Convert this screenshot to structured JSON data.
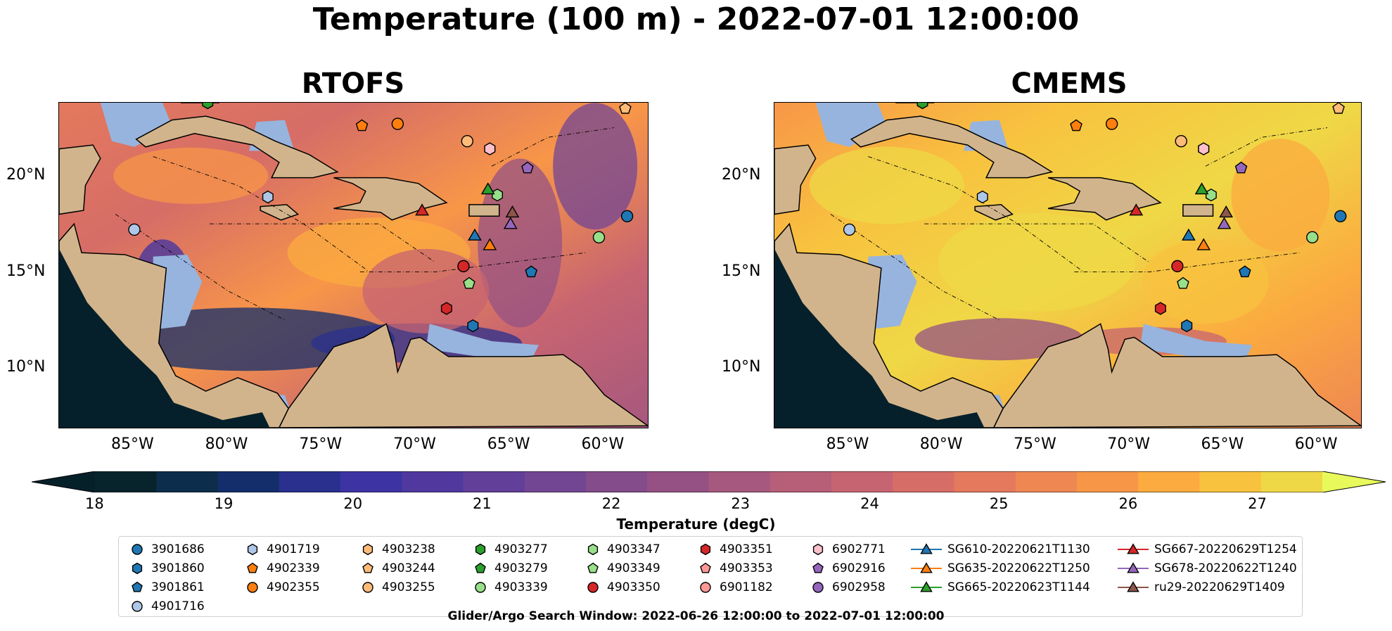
{
  "figure": {
    "title": "Temperature (100 m) - 2022-07-01 12:00:00",
    "search_window": "Glider/Argo Search Window: 2022-06-26 12:00:00 to 2022-07-01 12:00:00"
  },
  "panels": [
    {
      "title": "RTOFS",
      "palette": "cool"
    },
    {
      "title": "CMEMS",
      "palette": "warm"
    }
  ],
  "axes": {
    "lon_ticks": [
      "85°W",
      "80°W",
      "75°W",
      "70°W",
      "65°W",
      "60°W"
    ],
    "lat_ticks": [
      "20°N",
      "15°N",
      "10°N"
    ]
  },
  "colorbar": {
    "label": "Temperature (degC)",
    "min": 18,
    "max": 27.5,
    "ticks": [
      "18",
      "19",
      "20",
      "21",
      "22",
      "23",
      "24",
      "25",
      "26",
      "27"
    ],
    "colors": [
      "#07232c",
      "#0c2d4b",
      "#132e6b",
      "#2a308e",
      "#3d33a3",
      "#50389f",
      "#623f99",
      "#734693",
      "#844c8b",
      "#955184",
      "#a6587e",
      "#b75e78",
      "#c76471",
      "#d66d67",
      "#e4795d",
      "#ef8753",
      "#f89648",
      "#fbab3f",
      "#f8c23f",
      "#efd846"
    ],
    "under_color": "#06202a",
    "over_color": "#e8fa5b"
  },
  "map_colors": {
    "land": "#d2b48c",
    "shelf": "#97b4de",
    "deep_land": "#05202a"
  },
  "legend": {
    "columns": [
      [
        {
          "label": "3901686",
          "marker": "circle",
          "color": "#1f77b4"
        },
        {
          "label": "3901860",
          "marker": "hexagon",
          "color": "#1f77b4"
        },
        {
          "label": "3901861",
          "marker": "pentagon",
          "color": "#1f77b4"
        },
        {
          "label": "4901716",
          "marker": "circle",
          "color": "#aec7e8"
        }
      ],
      [
        {
          "label": "4901719",
          "marker": "hexagon",
          "color": "#aec7e8"
        },
        {
          "label": "4902339",
          "marker": "pentagon",
          "color": "#ff7f0e"
        },
        {
          "label": "4902355",
          "marker": "circle",
          "color": "#ff7f0e"
        }
      ],
      [
        {
          "label": "4903238",
          "marker": "hexagon",
          "color": "#ffbb78"
        },
        {
          "label": "4903244",
          "marker": "pentagon",
          "color": "#ffbb78"
        },
        {
          "label": "4903255",
          "marker": "circle",
          "color": "#ffbb78"
        }
      ],
      [
        {
          "label": "4903277",
          "marker": "hexagon",
          "color": "#2ca02c"
        },
        {
          "label": "4903279",
          "marker": "pentagon",
          "color": "#2ca02c"
        },
        {
          "label": "4903339",
          "marker": "circle",
          "color": "#98df8a"
        }
      ],
      [
        {
          "label": "4903347",
          "marker": "hexagon",
          "color": "#98df8a"
        },
        {
          "label": "4903349",
          "marker": "pentagon",
          "color": "#98df8a"
        },
        {
          "label": "4903350",
          "marker": "circle",
          "color": "#d62728"
        }
      ],
      [
        {
          "label": "4903351",
          "marker": "hexagon",
          "color": "#d62728"
        },
        {
          "label": "4903353",
          "marker": "pentagon",
          "color": "#ff9896"
        },
        {
          "label": "6901182",
          "marker": "circle",
          "color": "#ff9896"
        }
      ],
      [
        {
          "label": "6902771",
          "marker": "hexagon",
          "color": "#ffc0cb"
        },
        {
          "label": "6902916",
          "marker": "pentagon",
          "color": "#9467bd"
        },
        {
          "label": "6902958",
          "marker": "circle",
          "color": "#9467bd"
        }
      ],
      [
        {
          "label": "SG610-20220621T1130",
          "marker": "triangle-line",
          "color": "#1f77b4"
        },
        {
          "label": "SG635-20220622T1250",
          "marker": "triangle-line",
          "color": "#ff7f0e"
        },
        {
          "label": "SG665-20220623T1144",
          "marker": "triangle-line",
          "color": "#2ca02c"
        }
      ],
      [
        {
          "label": "SG667-20220629T1254",
          "marker": "triangle-line",
          "color": "#d62728"
        },
        {
          "label": "SG678-20220622T1240",
          "marker": "triangle-line",
          "color": "#9467bd"
        },
        {
          "label": "ru29-20220629T1409",
          "marker": "triangle-line",
          "color": "#8c564b"
        }
      ]
    ]
  },
  "observations": [
    {
      "id": "3901686",
      "marker": "circle",
      "color": "#1f77b4",
      "lon": -58.8,
      "lat": 17.9
    },
    {
      "id": "3901860",
      "marker": "hexagon",
      "color": "#1f77b4",
      "lon": -67.0,
      "lat": 12.2
    },
    {
      "id": "3901861",
      "marker": "pentagon",
      "color": "#1f77b4",
      "lon": -63.9,
      "lat": 15.0
    },
    {
      "id": "4901716",
      "marker": "circle",
      "color": "#aec7e8",
      "lon": -85.0,
      "lat": 17.2
    },
    {
      "id": "4901719",
      "marker": "hexagon",
      "color": "#aec7e8",
      "lon": -77.9,
      "lat": 18.9
    },
    {
      "id": "4902339",
      "marker": "pentagon",
      "color": "#ff7f0e",
      "lon": -72.9,
      "lat": 22.6
    },
    {
      "id": "4902355",
      "marker": "circle",
      "color": "#ff7f0e",
      "lon": -71.0,
      "lat": 22.7
    },
    {
      "id": "4903238",
      "marker": "hexagon",
      "color": "#ffbb78",
      "lon": -66.1,
      "lat": 21.4
    },
    {
      "id": "4903244",
      "marker": "pentagon",
      "color": "#ffbb78",
      "lon": -58.9,
      "lat": 23.5
    },
    {
      "id": "4903255",
      "marker": "circle",
      "color": "#ffbb78",
      "lon": -67.3,
      "lat": 21.8
    },
    {
      "id": "4903277",
      "marker": "hexagon",
      "color": "#2ca02c",
      "lon": -81.1,
      "lat": 23.8
    },
    {
      "id": "4903339",
      "marker": "circle",
      "color": "#98df8a",
      "lon": -60.3,
      "lat": 16.8
    },
    {
      "id": "4903347",
      "marker": "hexagon",
      "color": "#98df8a",
      "lon": -65.7,
      "lat": 19.0
    },
    {
      "id": "4903349",
      "marker": "pentagon",
      "color": "#98df8a",
      "lon": -67.2,
      "lat": 14.4
    },
    {
      "id": "4903350",
      "marker": "circle",
      "color": "#d62728",
      "lon": -67.5,
      "lat": 15.3
    },
    {
      "id": "4903351",
      "marker": "hexagon",
      "color": "#d62728",
      "lon": -68.4,
      "lat": 13.1
    },
    {
      "id": "6902771",
      "marker": "hexagon",
      "color": "#ffc0cb",
      "lon": -66.1,
      "lat": 21.4
    },
    {
      "id": "6902916",
      "marker": "pentagon",
      "color": "#9467bd",
      "lon": -64.1,
      "lat": 20.4
    },
    {
      "id": "SG610-20220621T1130",
      "marker": "triangle",
      "color": "#1f77b4",
      "lon": -66.9,
      "lat": 16.9
    },
    {
      "id": "SG635-20220622T1250",
      "marker": "triangle",
      "color": "#ff7f0e",
      "lon": -66.1,
      "lat": 16.4
    },
    {
      "id": "SG665-20220623T1144",
      "marker": "triangle",
      "color": "#2ca02c",
      "lon": -66.2,
      "lat": 19.3
    },
    {
      "id": "SG667-20220629T1254",
      "marker": "triangle",
      "color": "#d62728",
      "lon": -69.7,
      "lat": 18.2
    },
    {
      "id": "SG678-20220622T1240",
      "marker": "triangle",
      "color": "#9467bd",
      "lon": -65.0,
      "lat": 17.5
    },
    {
      "id": "ru29-20220629T1409",
      "marker": "triangle",
      "color": "#8c564b",
      "lon": -64.9,
      "lat": 18.1
    }
  ]
}
